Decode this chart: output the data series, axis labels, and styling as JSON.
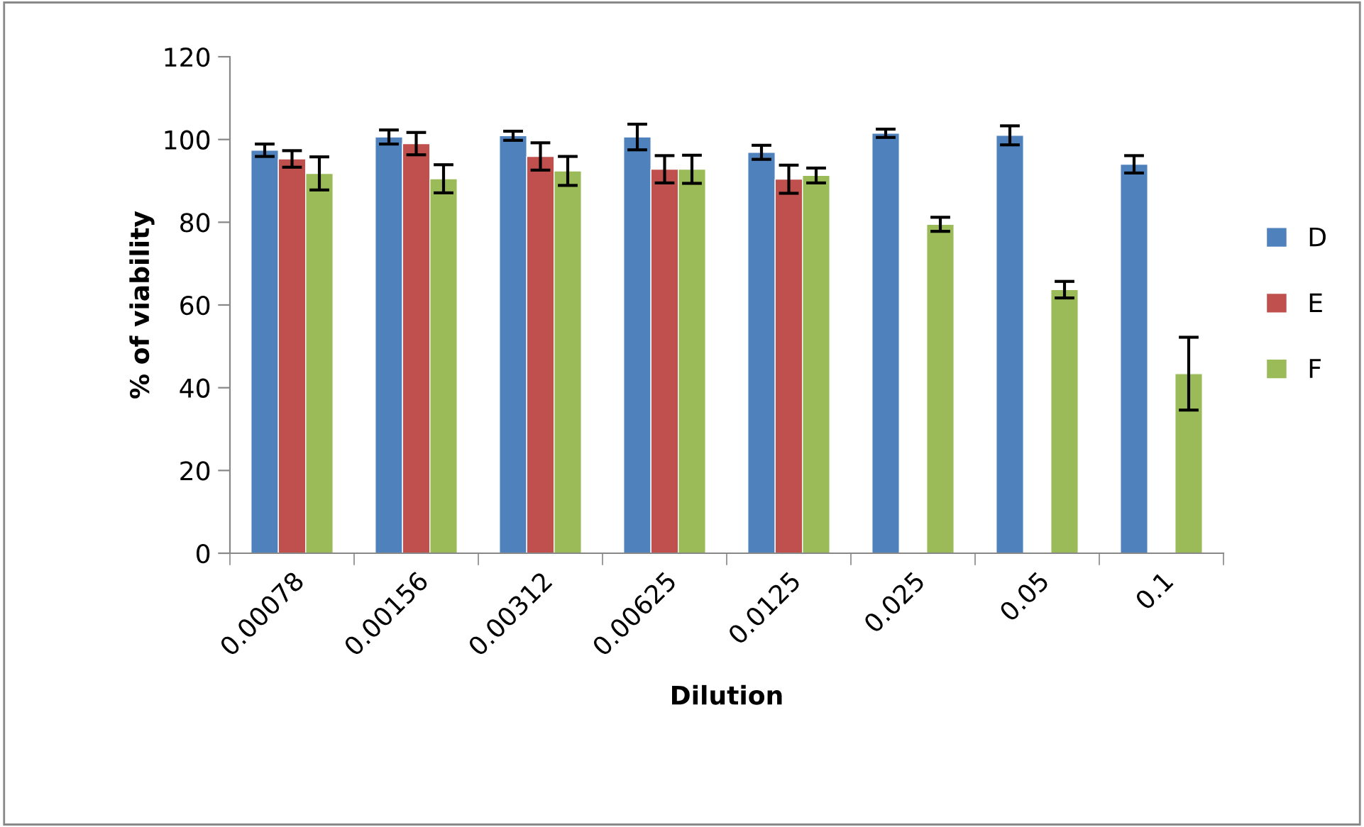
{
  "chart_data": {
    "type": "bar",
    "xlabel": "Dilution",
    "ylabel": "% of viability",
    "categories": [
      "0.00078",
      "0.00156",
      "0.00312",
      "0.00625",
      "0.0125",
      "0.025",
      "0.05",
      "0.1"
    ],
    "series": [
      {
        "name": "D",
        "color": "#4f81bd",
        "values": [
          97.4,
          100.6,
          100.9,
          100.6,
          96.9,
          101.5,
          101.0,
          94.0
        ],
        "errors": [
          1.5,
          1.7,
          1.1,
          3.1,
          1.7,
          1.0,
          2.3,
          2.1
        ]
      },
      {
        "name": "E",
        "color": "#c0504d",
        "values": [
          95.3,
          99.0,
          95.9,
          92.8,
          90.4,
          null,
          null,
          null
        ],
        "errors": [
          2.0,
          2.7,
          3.3,
          3.3,
          3.4,
          null,
          null,
          null
        ]
      },
      {
        "name": "F",
        "color": "#9bbb59",
        "values": [
          91.8,
          90.5,
          92.4,
          92.8,
          91.3,
          79.5,
          63.7,
          43.4
        ],
        "errors": [
          4.0,
          3.4,
          3.5,
          3.4,
          1.8,
          1.7,
          2.0,
          8.8
        ]
      }
    ],
    "ylim": [
      0,
      120
    ],
    "yticks": [
      0,
      20,
      40,
      60,
      80,
      100,
      120
    ],
    "grid": false,
    "legend": "right"
  }
}
